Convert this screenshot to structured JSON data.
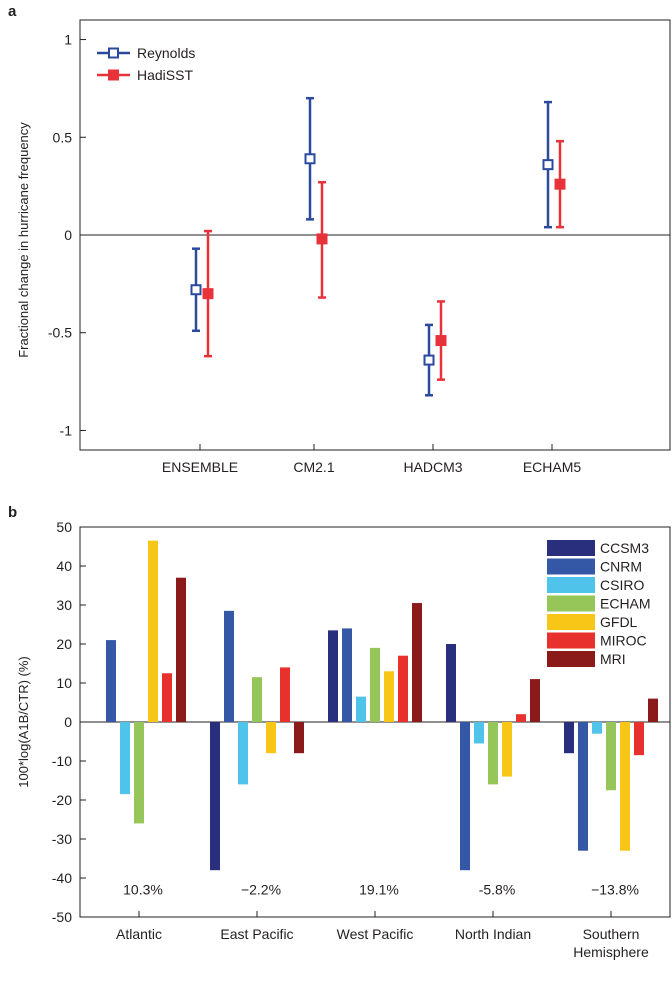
{
  "chart_data": [
    {
      "panel_label": "a",
      "type": "scatter",
      "subtype": "errorbar",
      "categories": [
        "ENSEMBLE",
        "CM2.1",
        "HADCM3",
        "ECHAM5"
      ],
      "ylabel": "Fractional change in hurricane frequency",
      "xlabel": "",
      "ylim": [
        -1.1,
        1.1
      ],
      "yticks": [
        1,
        0.5,
        0,
        -0.5,
        -1
      ],
      "ytick_labels": [
        "1",
        "0.5",
        "0",
        "-0.5",
        "-1"
      ],
      "legend_position": "top-left",
      "series": [
        {
          "name": "Reynolds",
          "color": "#2b4a9e",
          "marker": "open-square",
          "values": [
            -0.28,
            0.39,
            -0.64,
            0.36
          ],
          "lower": [
            -0.49,
            0.08,
            -0.82,
            0.04
          ],
          "upper": [
            -0.07,
            0.7,
            -0.46,
            0.68
          ]
        },
        {
          "name": "HadiSST",
          "color": "#e8323a",
          "marker": "filled-square",
          "values": [
            -0.3,
            -0.02,
            -0.54,
            0.26
          ],
          "lower": [
            -0.62,
            -0.32,
            -0.74,
            0.04
          ],
          "upper": [
            0.02,
            0.27,
            -0.34,
            0.48
          ]
        }
      ]
    },
    {
      "panel_label": "b",
      "type": "bar",
      "categories": [
        "Atlantic",
        "East Pacific",
        "West Pacific",
        "North Indian",
        "Southern\nHemisphere"
      ],
      "ylabel": "100*log(A1B/CTR) (%)",
      "xlabel": "",
      "ylim": [
        -50,
        50
      ],
      "yticks": [
        50,
        40,
        30,
        20,
        10,
        0,
        -10,
        -20,
        -30,
        -40,
        -50
      ],
      "legend_position": "top-right",
      "annotations": [
        "10.3%",
        "−2.2%",
        "19.1%",
        "-5.8%",
        "−13.8%"
      ],
      "series": [
        {
          "name": "CCSM3",
          "color": "#2a2f7d",
          "values": [
            null,
            -38,
            23.5,
            20,
            -8
          ]
        },
        {
          "name": "CNRM",
          "color": "#3457a6",
          "values": [
            21,
            28.5,
            24,
            -38,
            -33
          ]
        },
        {
          "name": "CSIRO",
          "color": "#4fc3ea",
          "values": [
            -18.5,
            -16,
            6.5,
            -5.5,
            -3
          ]
        },
        {
          "name": "ECHAM",
          "color": "#96c65a",
          "values": [
            -26,
            11.5,
            19,
            -16,
            -17.5
          ]
        },
        {
          "name": "GFDL",
          "color": "#f7c617",
          "values": [
            46.5,
            -8,
            13,
            -14,
            -33
          ]
        },
        {
          "name": "MIROC",
          "color": "#e8312d",
          "values": [
            12.5,
            14,
            17,
            2,
            -8.5
          ]
        },
        {
          "name": "MRI",
          "color": "#8b1a1a",
          "values": [
            37,
            -8,
            30.5,
            11,
            6
          ]
        }
      ]
    }
  ]
}
